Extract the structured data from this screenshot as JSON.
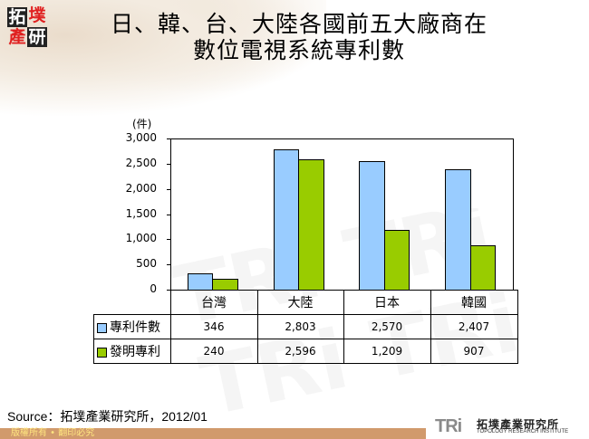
{
  "header": {
    "logo_chars": [
      "拓",
      "墣",
      "產",
      "研"
    ],
    "title_line1": "日、韓、台、大陸各國前五大廠商在",
    "title_line2": "數位電視系統專利數"
  },
  "chart_data": {
    "type": "bar",
    "title": "日、韓、台、大陸各國前五大廠商在數位電視系統專利數",
    "ylabel": "(件)",
    "xlabel": "",
    "ylim": [
      0,
      3000
    ],
    "yticks": [
      "3,000",
      "2,500",
      "2,000",
      "1,500",
      "1,000",
      "500",
      "0"
    ],
    "grid": false,
    "legend_position": "data-table",
    "categories": [
      "台灣",
      "大陸",
      "日本",
      "韓國"
    ],
    "series": [
      {
        "name": "專利件數",
        "color": "#99ccff",
        "values": [
          346,
          2803,
          2570,
          2407
        ],
        "labels": [
          "346",
          "2,803",
          "2,570",
          "2,407"
        ]
      },
      {
        "name": "發明專利",
        "color": "#99cc00",
        "values": [
          240,
          2596,
          1209,
          907
        ],
        "labels": [
          "240",
          "2,596",
          "1,209",
          "907"
        ]
      }
    ]
  },
  "footer": {
    "source": "Source：拓墣產業研究所，2012/01",
    "copyright": "版權所有 • 翻印必究",
    "brand_short": "TRi",
    "brand_cn": "拓墣產業研究所",
    "brand_en": "TOPOLOGY RESEARCH INSTITUTE"
  }
}
